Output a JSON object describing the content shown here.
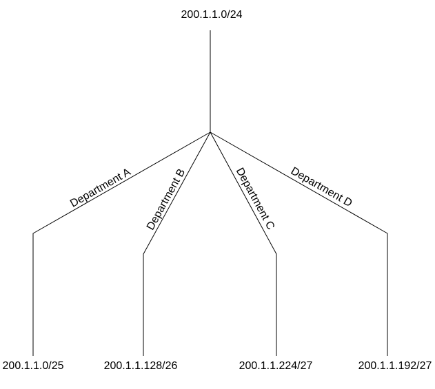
{
  "root": {
    "label": "200.1.1.0/24"
  },
  "branches": [
    {
      "department": "Department A",
      "subnet": "200.1.1.0/25"
    },
    {
      "department": "Department B",
      "subnet": "200.1.1.128/26"
    },
    {
      "department": "Department C",
      "subnet": "200.1.1.224/27"
    },
    {
      "department": "Department D",
      "subnet": "200.1.1.192/27"
    }
  ]
}
